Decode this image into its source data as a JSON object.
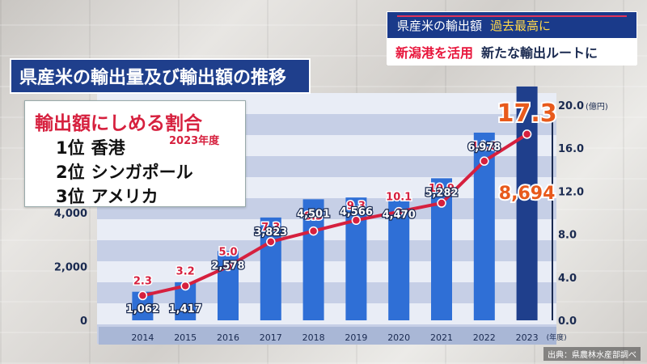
{
  "header": {
    "title": "県産米の輸出量及び輸出額の推移"
  },
  "news": {
    "line1_main": "県産米の輸出額",
    "line1_highlight": "過去最高に",
    "line2_tag": "新潟港を活用",
    "line2_rest": "新たな輸出ルートに"
  },
  "info_box": {
    "title": "輸出額にしめる割合",
    "year": "2023年度",
    "ranks": [
      {
        "rank": "1位",
        "country": "香港"
      },
      {
        "rank": "2位",
        "country": "シンガポール"
      },
      {
        "rank": "3位",
        "country": "アメリカ"
      }
    ]
  },
  "source": "出典：県農林水産部調べ",
  "chart_data": {
    "type": "bar+line",
    "categories": [
      "2014",
      "2015",
      "2016",
      "2017",
      "2018",
      "2019",
      "2020",
      "2021",
      "2022",
      "2023"
    ],
    "x_unit": "(年度)",
    "bar_series": {
      "values": [
        1062,
        1417,
        2578,
        3823,
        4501,
        4566,
        4470,
        5282,
        6978,
        8694
      ],
      "labels": [
        "1,062",
        "1,417",
        "2,578",
        "3,823",
        "4,501",
        "4,566",
        "4,470",
        "5,282",
        "6,978",
        "8,694"
      ],
      "ylim": [
        0,
        8000
      ],
      "ticks": [
        "0",
        "2,000",
        "4,000"
      ]
    },
    "line_series": {
      "values": [
        2.3,
        3.2,
        5.0,
        7.3,
        8.3,
        9.3,
        10.1,
        10.9,
        14.8,
        17.3
      ],
      "labels": [
        "2.3",
        "3.2",
        "5.0",
        "7.3",
        "8.3",
        "9.3",
        "10.1",
        "10.9",
        "14.8",
        "17.3"
      ],
      "ylim": [
        0,
        20
      ],
      "ticks": [
        "0.0",
        "4.0",
        "8.0",
        "12.0",
        "16.0",
        "20.0"
      ],
      "unit": "(億円)"
    },
    "colors": {
      "bar": "#2f6fd6",
      "bar_last": "#1f3f8c",
      "line": "#d6203e",
      "highlight": "#e85a1c"
    }
  }
}
